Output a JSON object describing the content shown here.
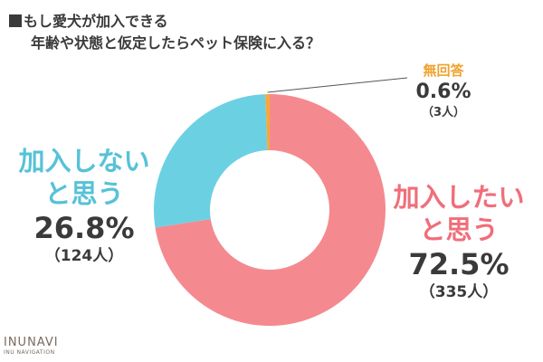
{
  "title": {
    "line1": "もし愛犬が加入できる",
    "line2": "年齢や状態と仮定したらペット保険に入る？"
  },
  "chart_data": {
    "type": "pie",
    "variant": "donut",
    "title": "もし愛犬が加入できる年齢や状態と仮定したらペット保険に入る？",
    "series": [
      {
        "name": "加入したいと思う",
        "line1": "加入したい",
        "line2": "と思う",
        "value": 72.5,
        "percent_label": "72.5%",
        "count": 335,
        "count_label": "（335人）",
        "color": "#f48a8f",
        "label_color": "#f06e7a"
      },
      {
        "name": "加入しないと思う",
        "line1": "加入しない",
        "line2": "と思う",
        "value": 26.8,
        "percent_label": "26.8%",
        "count": 124,
        "count_label": "（124人）",
        "color": "#6cd0e3",
        "label_color": "#56c2d8"
      },
      {
        "name": "無回答",
        "line1": "無回答",
        "value": 0.6,
        "percent_label": "0.6%",
        "count": 3,
        "count_label": "（3人）",
        "color": "#f6a83a",
        "label_color": "#f0a22e"
      }
    ]
  },
  "logo": {
    "main": "INUNAVI",
    "sub": "INU NAVIGATION"
  }
}
